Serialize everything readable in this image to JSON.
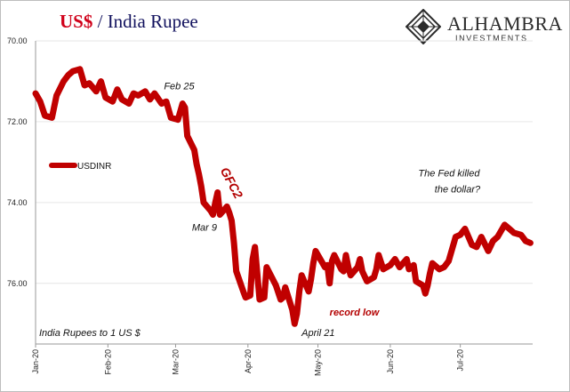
{
  "header": {
    "title_currency": "US$",
    "title_rest": " / India Rupee"
  },
  "logo": {
    "brand": "ALHAMBRA",
    "sub": "INVESTMENTS",
    "icon": "alhambra-diamond-icon"
  },
  "colors": {
    "series": "#c00000",
    "title_accent": "#d0021b",
    "title_navy": "#12125e",
    "annotation_red": "#b30000",
    "grid": "#e6e6e6"
  },
  "chart_data": {
    "type": "line",
    "title": "US$ / India Rupee",
    "ylabel": "",
    "xlabel": "",
    "y_inverted": true,
    "ylim": [
      70.0,
      77.5
    ],
    "xlim": [
      "2020-01-01",
      "2020-08-01"
    ],
    "grid": true,
    "y_ticks": [
      "70.00",
      "72.00",
      "74.00",
      "76.00"
    ],
    "y_tick_values": [
      70,
      72,
      74,
      76
    ],
    "x_ticks": [
      "Jan-20",
      "Feb-20",
      "Mar-20",
      "Apr-20",
      "May-20",
      "Jun-20",
      "Jul-20"
    ],
    "x_tick_dates": [
      "2020-01-01",
      "2020-02-01",
      "2020-03-01",
      "2020-04-01",
      "2020-05-01",
      "2020-06-01",
      "2020-07-01"
    ],
    "legend_position": "left",
    "series": [
      {
        "name": "USDINR",
        "points": [
          [
            "2020-01-01",
            71.3
          ],
          [
            "2020-01-03",
            71.5
          ],
          [
            "2020-01-05",
            71.85
          ],
          [
            "2020-01-08",
            71.9
          ],
          [
            "2020-01-10",
            71.35
          ],
          [
            "2020-01-13",
            71.0
          ],
          [
            "2020-01-15",
            70.85
          ],
          [
            "2020-01-17",
            70.75
          ],
          [
            "2020-01-20",
            70.7
          ],
          [
            "2020-01-22",
            71.1
          ],
          [
            "2020-01-24",
            71.05
          ],
          [
            "2020-01-27",
            71.25
          ],
          [
            "2020-01-29",
            71.0
          ],
          [
            "2020-01-31",
            71.4
          ],
          [
            "2020-02-03",
            71.5
          ],
          [
            "2020-02-05",
            71.2
          ],
          [
            "2020-02-07",
            71.45
          ],
          [
            "2020-02-10",
            71.55
          ],
          [
            "2020-02-12",
            71.3
          ],
          [
            "2020-02-14",
            71.35
          ],
          [
            "2020-02-17",
            71.25
          ],
          [
            "2020-02-19",
            71.45
          ],
          [
            "2020-02-21",
            71.3
          ],
          [
            "2020-02-24",
            71.55
          ],
          [
            "2020-02-26",
            71.5
          ],
          [
            "2020-02-28",
            71.9
          ],
          [
            "2020-03-02",
            71.95
          ],
          [
            "2020-03-04",
            71.55
          ],
          [
            "2020-03-05",
            71.65
          ],
          [
            "2020-03-06",
            72.35
          ],
          [
            "2020-03-09",
            72.7
          ],
          [
            "2020-03-10",
            73.05
          ],
          [
            "2020-03-11",
            73.3
          ],
          [
            "2020-03-12",
            73.6
          ],
          [
            "2020-03-13",
            74.0
          ],
          [
            "2020-03-16",
            74.2
          ],
          [
            "2020-03-17",
            74.3
          ],
          [
            "2020-03-18",
            74.0
          ],
          [
            "2020-03-19",
            73.75
          ],
          [
            "2020-03-20",
            74.3
          ],
          [
            "2020-03-23",
            74.1
          ],
          [
            "2020-03-24",
            74.25
          ],
          [
            "2020-03-25",
            74.45
          ],
          [
            "2020-03-26",
            75.0
          ],
          [
            "2020-03-27",
            75.7
          ],
          [
            "2020-03-30",
            76.2
          ],
          [
            "2020-03-31",
            76.35
          ],
          [
            "2020-04-02",
            76.3
          ],
          [
            "2020-04-03",
            75.4
          ],
          [
            "2020-04-04",
            75.1
          ],
          [
            "2020-04-06",
            76.4
          ],
          [
            "2020-04-08",
            76.35
          ],
          [
            "2020-04-09",
            75.6
          ],
          [
            "2020-04-13",
            76.05
          ],
          [
            "2020-04-15",
            76.4
          ],
          [
            "2020-04-16",
            76.35
          ],
          [
            "2020-04-17",
            76.1
          ],
          [
            "2020-04-20",
            76.65
          ],
          [
            "2020-04-21",
            77.0
          ],
          [
            "2020-04-22",
            76.75
          ],
          [
            "2020-04-23",
            76.2
          ],
          [
            "2020-04-24",
            75.8
          ],
          [
            "2020-04-27",
            76.2
          ],
          [
            "2020-04-28",
            75.9
          ],
          [
            "2020-04-29",
            75.5
          ],
          [
            "2020-04-30",
            75.2
          ],
          [
            "2020-05-04",
            75.6
          ],
          [
            "2020-05-05",
            75.55
          ],
          [
            "2020-05-06",
            76.0
          ],
          [
            "2020-05-07",
            75.45
          ],
          [
            "2020-05-08",
            75.3
          ],
          [
            "2020-05-11",
            75.65
          ],
          [
            "2020-05-12",
            75.7
          ],
          [
            "2020-05-13",
            75.3
          ],
          [
            "2020-05-14",
            75.6
          ],
          [
            "2020-05-15",
            75.8
          ],
          [
            "2020-05-18",
            75.6
          ],
          [
            "2020-05-19",
            75.4
          ],
          [
            "2020-05-20",
            75.7
          ],
          [
            "2020-05-22",
            75.95
          ],
          [
            "2020-05-25",
            75.85
          ],
          [
            "2020-05-26",
            75.65
          ],
          [
            "2020-05-27",
            75.3
          ],
          [
            "2020-05-29",
            75.65
          ],
          [
            "2020-06-01",
            75.55
          ],
          [
            "2020-06-03",
            75.4
          ],
          [
            "2020-06-05",
            75.6
          ],
          [
            "2020-06-08",
            75.4
          ],
          [
            "2020-06-09",
            75.65
          ],
          [
            "2020-06-11",
            75.55
          ],
          [
            "2020-06-12",
            75.95
          ],
          [
            "2020-06-15",
            76.05
          ],
          [
            "2020-06-16",
            76.25
          ],
          [
            "2020-06-17",
            76.05
          ],
          [
            "2020-06-18",
            75.75
          ],
          [
            "2020-06-19",
            75.5
          ],
          [
            "2020-06-22",
            75.65
          ],
          [
            "2020-06-24",
            75.6
          ],
          [
            "2020-06-26",
            75.45
          ],
          [
            "2020-06-29",
            74.85
          ],
          [
            "2020-07-01",
            74.8
          ],
          [
            "2020-07-03",
            74.65
          ],
          [
            "2020-07-06",
            75.05
          ],
          [
            "2020-07-08",
            75.1
          ],
          [
            "2020-07-10",
            74.85
          ],
          [
            "2020-07-13",
            75.2
          ],
          [
            "2020-07-15",
            74.95
          ],
          [
            "2020-07-17",
            74.85
          ],
          [
            "2020-07-20",
            74.55
          ],
          [
            "2020-07-22",
            74.65
          ],
          [
            "2020-07-24",
            74.75
          ],
          [
            "2020-07-27",
            74.8
          ],
          [
            "2020-07-29",
            74.95
          ],
          [
            "2020-07-31",
            75.0
          ]
        ]
      }
    ],
    "annotations": [
      {
        "text": "Feb 25",
        "style": "italic",
        "date": "2020-02-25",
        "value": 71.2
      },
      {
        "text": "Mar 9",
        "style": "italic",
        "date": "2020-03-08",
        "value": 74.7
      },
      {
        "text": "GFC2",
        "style": "red-bold",
        "date": "2020-03-20",
        "value": 73.2
      },
      {
        "text": "record low",
        "style": "red-bold",
        "date": "2020-05-06",
        "value": 76.8
      },
      {
        "text": "April 21",
        "style": "italic",
        "date": "2020-04-24",
        "value": 77.3
      },
      {
        "text": "The Fed killed",
        "style": "italic",
        "date": "2020-06-13",
        "value": 73.35
      },
      {
        "text": "the dollar?",
        "style": "italic",
        "date": "2020-06-20",
        "value": 73.75
      },
      {
        "text": "India Rupees to 1 US $",
        "style": "italic",
        "date": "2020-01-01",
        "value": 77.3
      }
    ]
  }
}
